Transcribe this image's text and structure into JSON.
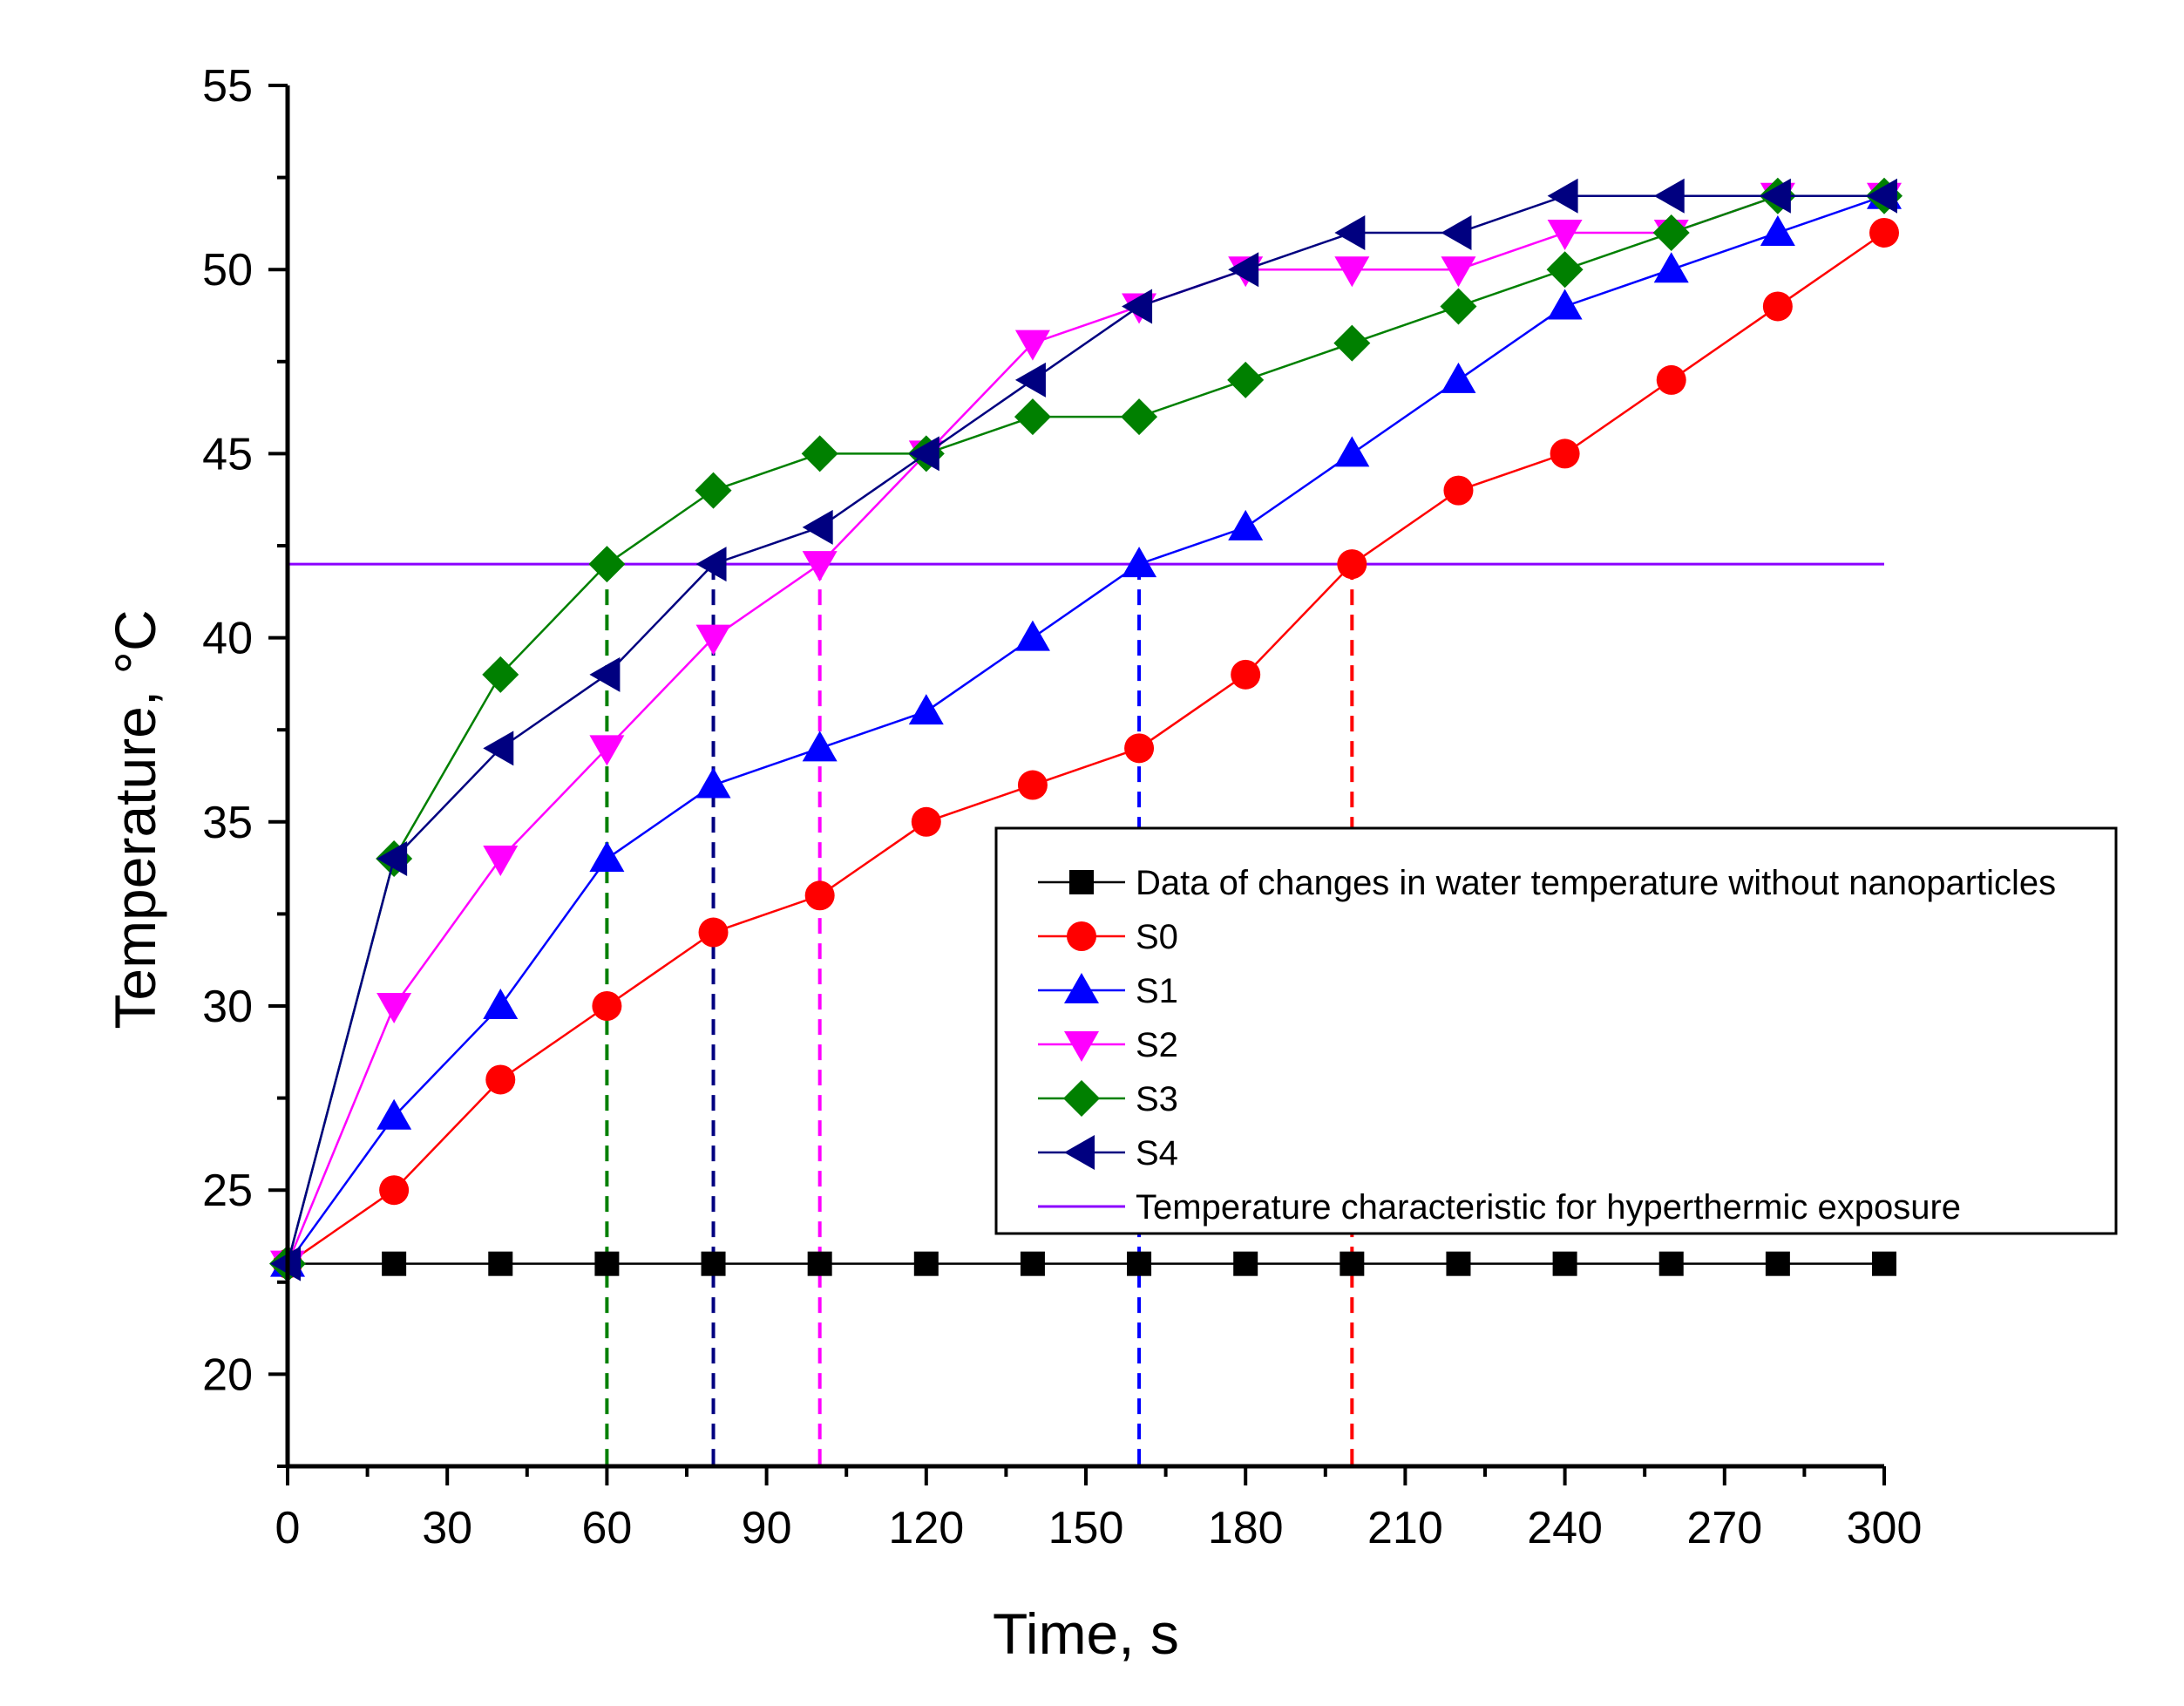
{
  "chart_data": {
    "type": "line",
    "xlabel": "Time, s",
    "ylabel": "Temperature, °C",
    "xlim": [
      0,
      300
    ],
    "ylim": [
      17.5,
      55
    ],
    "xticks": [
      0,
      30,
      60,
      90,
      120,
      150,
      180,
      210,
      240,
      270,
      300
    ],
    "yticks": [
      20,
      25,
      30,
      35,
      40,
      45,
      50,
      55
    ],
    "legend_position": "right",
    "x": [
      0,
      20,
      40,
      60,
      80,
      100,
      120,
      140,
      160,
      180,
      200,
      220,
      240,
      260,
      280,
      300
    ],
    "series": [
      {
        "name": "Data of changes in water temperature without nanoparticles",
        "marker": "square",
        "color": "#000000",
        "values": [
          23,
          23,
          23,
          23,
          23,
          23,
          23,
          23,
          23,
          23,
          23,
          23,
          23,
          23,
          23,
          23
        ]
      },
      {
        "name": "S0",
        "marker": "circle",
        "color": "#ff0000",
        "values": [
          23,
          25,
          28,
          30,
          32,
          33,
          35,
          36,
          37,
          39,
          42,
          44,
          45,
          47,
          49,
          51
        ]
      },
      {
        "name": "S1",
        "marker": "triangle-up",
        "color": "#0000ff",
        "values": [
          23,
          27,
          30,
          34,
          36,
          37,
          38,
          40,
          42,
          43,
          45,
          47,
          49,
          50,
          51,
          52
        ]
      },
      {
        "name": "S2",
        "marker": "triangle-down",
        "color": "#ff00ff",
        "values": [
          23,
          30,
          34,
          37,
          40,
          42,
          45,
          48,
          49,
          50,
          50,
          50,
          51,
          51,
          52,
          52
        ]
      },
      {
        "name": "S3",
        "marker": "diamond",
        "color": "#008000",
        "values": [
          23,
          34,
          39,
          42,
          44,
          45,
          45,
          46,
          46,
          47,
          48,
          49,
          50,
          51,
          52,
          52
        ]
      },
      {
        "name": "S4",
        "marker": "triangle-left",
        "color": "#000080",
        "values": [
          23,
          34,
          37,
          39,
          42,
          43,
          45,
          47,
          49,
          50,
          51,
          51,
          52,
          52,
          52,
          52
        ]
      }
    ],
    "reference_line": {
      "name": "Temperature characteristic for hyperthermic exposure",
      "y": 42,
      "x_range": [
        0,
        300
      ],
      "color": "#8b00ff"
    },
    "drop_lines": [
      {
        "series": "S3",
        "x": 60,
        "y": 42,
        "color": "#008000"
      },
      {
        "series": "S4",
        "x": 80,
        "y": 42,
        "color": "#000080"
      },
      {
        "series": "S2",
        "x": 100,
        "y": 42,
        "color": "#ff00ff"
      },
      {
        "series": "S1",
        "x": 160,
        "y": 42,
        "color": "#0000ff"
      },
      {
        "series": "S0",
        "x": 200,
        "y": 42,
        "color": "#ff0000"
      }
    ]
  }
}
